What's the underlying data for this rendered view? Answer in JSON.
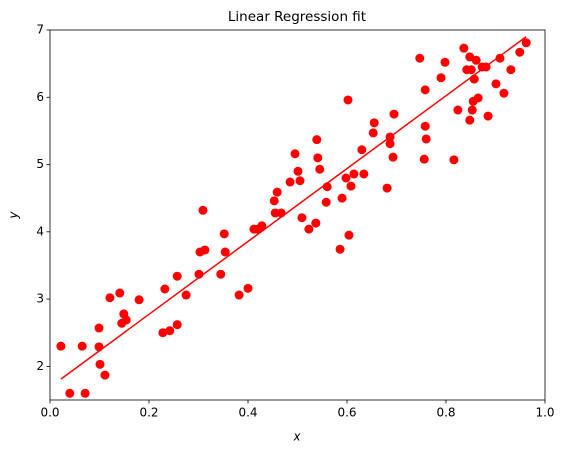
{
  "chart_data": {
    "type": "scatter",
    "title": "Linear Regression fit",
    "x_label": "x",
    "y_label": "y",
    "xlim": [
      0,
      1
    ],
    "ylim": [
      1.5,
      7
    ],
    "xticks": [
      {
        "value": 0,
        "label": "0.0"
      },
      0.2,
      0.4,
      0.6,
      0.8,
      {
        "value": 1,
        "label": "1.0"
      }
    ],
    "yticks": [
      2,
      3,
      4,
      5,
      6,
      7
    ],
    "series": [
      {
        "type": "scatter",
        "color": "#ff0000",
        "x": [
          0.022,
          0.04,
          0.065,
          0.071,
          0.099,
          0.099,
          0.101,
          0.111,
          0.121,
          0.141,
          0.145,
          0.149,
          0.154,
          0.18,
          0.228,
          0.232,
          0.242,
          0.257,
          0.257,
          0.275,
          0.301,
          0.303,
          0.313,
          0.309,
          0.345,
          0.352,
          0.354,
          0.382,
          0.4,
          0.412,
          0.42,
          0.428,
          0.453,
          0.455,
          0.459,
          0.467,
          0.485,
          0.495,
          0.501,
          0.505,
          0.509,
          0.523,
          0.537,
          0.539,
          0.541,
          0.545,
          0.558,
          0.56,
          0.586,
          0.59,
          0.598,
          0.602,
          0.604,
          0.608,
          0.614,
          0.63,
          0.634,
          0.653,
          0.655,
          0.681,
          0.687,
          0.687,
          0.693,
          0.695,
          0.747,
          0.756,
          0.758,
          0.758,
          0.76,
          0.79,
          0.798,
          0.816,
          0.824,
          0.836,
          0.842,
          0.848,
          0.851,
          0.848,
          0.853,
          0.855,
          0.857,
          0.861,
          0.865,
          0.873,
          0.881,
          0.885,
          0.901,
          0.909,
          0.917,
          0.931,
          0.949,
          0.962
        ],
        "values": [
          2.3,
          1.6,
          2.3,
          1.6,
          2.57,
          2.29,
          2.03,
          1.87,
          3.02,
          3.09,
          2.64,
          2.78,
          2.69,
          2.99,
          2.5,
          3.15,
          2.53,
          2.62,
          3.34,
          3.06,
          3.37,
          3.7,
          3.73,
          4.32,
          3.37,
          3.97,
          3.7,
          3.06,
          3.16,
          4.04,
          4.04,
          4.09,
          4.46,
          4.28,
          4.59,
          4.28,
          4.74,
          5.16,
          4.9,
          4.76,
          4.21,
          4.04,
          4.13,
          5.37,
          5.1,
          4.93,
          4.44,
          4.67,
          3.74,
          4.5,
          4.8,
          5.96,
          3.95,
          4.68,
          4.86,
          5.22,
          4.86,
          5.47,
          5.62,
          4.65,
          5.31,
          5.41,
          5.11,
          5.75,
          6.58,
          5.08,
          6.11,
          5.57,
          5.38,
          6.29,
          6.52,
          5.07,
          5.81,
          6.73,
          6.41,
          6.6,
          6.41,
          5.66,
          5.81,
          5.94,
          6.27,
          6.55,
          5.99,
          6.45,
          6.45,
          5.72,
          6.2,
          6.58,
          6.06,
          6.41,
          6.67,
          6.81
        ]
      },
      {
        "type": "line",
        "color": "#ff0000",
        "x": [
          0.022,
          0.962
        ],
        "values": [
          1.81,
          6.9
        ]
      }
    ]
  }
}
